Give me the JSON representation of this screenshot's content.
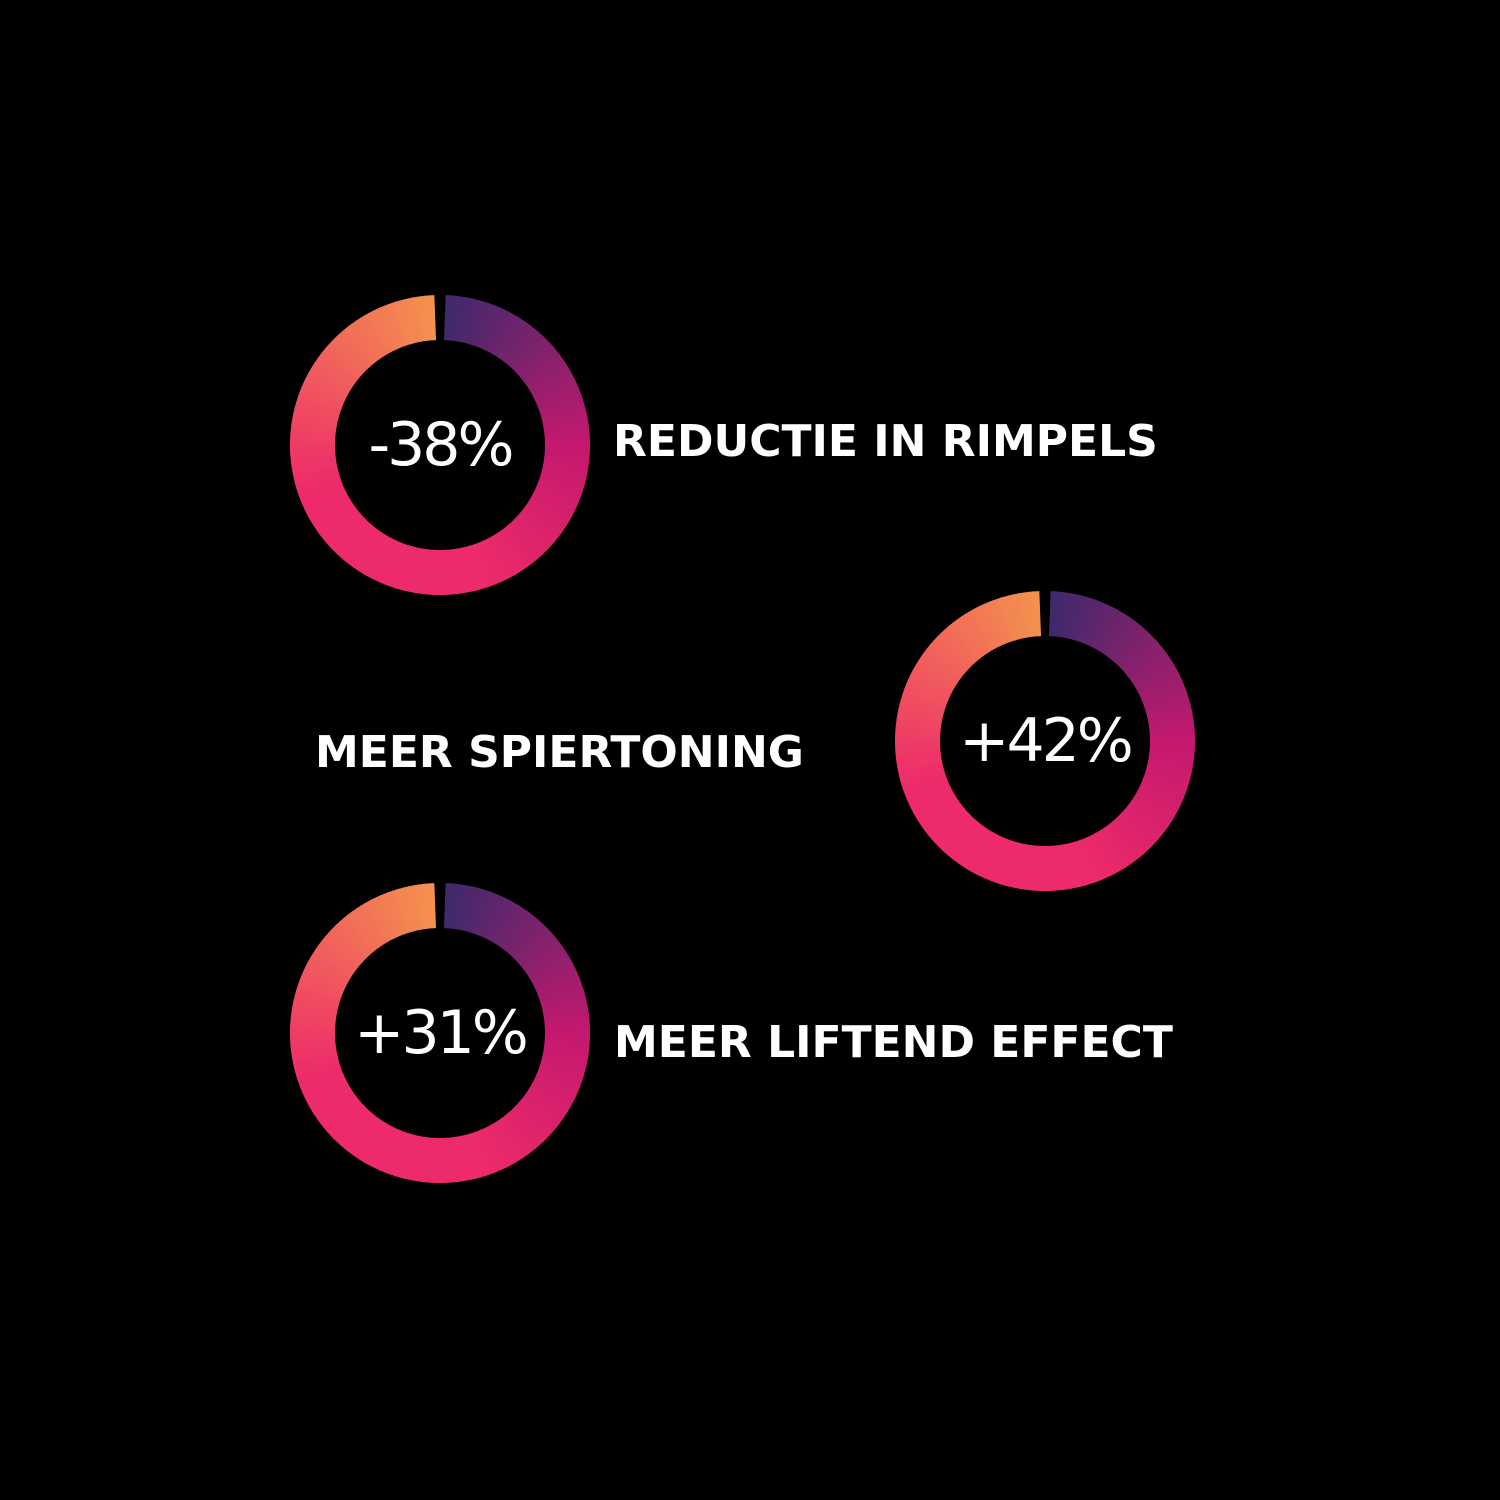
{
  "colors": {
    "background": "#000000",
    "text": "#ffffff",
    "ring_orange": "#f4914f",
    "ring_pink": "#ed2a6a",
    "ring_magenta": "#c4196e",
    "ring_purple": "#3c2a6b"
  },
  "stats": [
    {
      "value": "-38%",
      "label": "REDUCTIE IN RIMPELS"
    },
    {
      "value": "+42%",
      "label": "MEER SPIERTONING"
    },
    {
      "value": "+31%",
      "label": "MEER LIFTEND EFFECT"
    }
  ]
}
